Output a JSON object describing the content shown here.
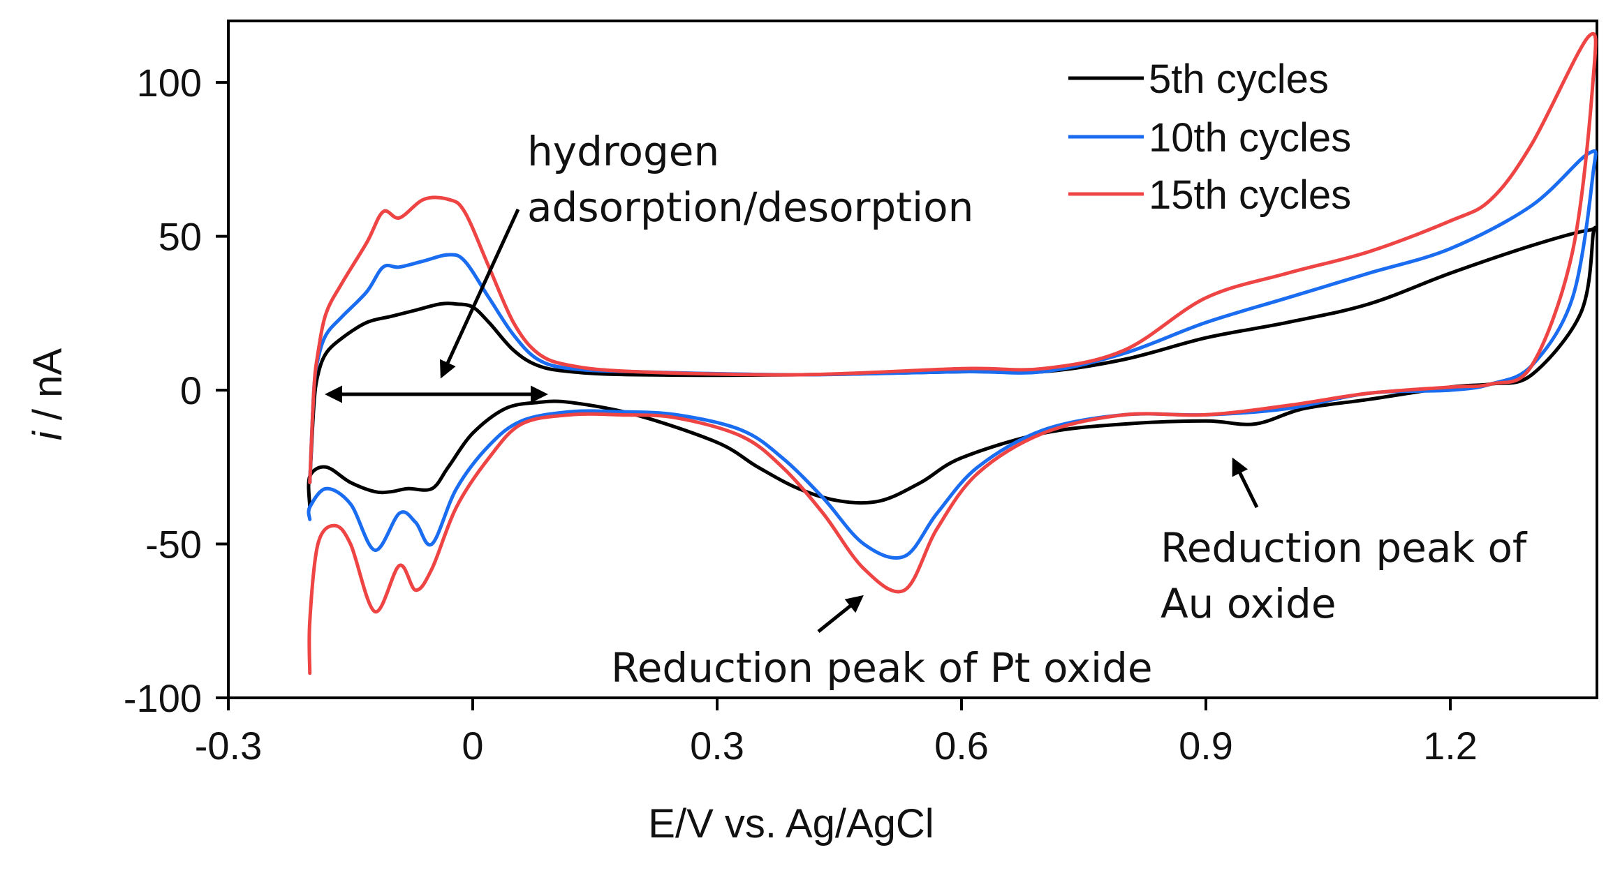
{
  "chart_data": {
    "type": "line",
    "title": "",
    "xlabel": "E/V  vs.  Ag/AgCl",
    "ylabel_italic": "i",
    "ylabel_rest": " / nA",
    "xlim": [
      -0.3,
      1.38
    ],
    "ylim": [
      -100,
      120
    ],
    "xticks": [
      -0.3,
      0,
      0.3,
      0.6,
      0.9,
      1.2
    ],
    "xtick_labels": [
      "-0.3",
      "0",
      "0.3",
      "0.6",
      "0.9",
      "1.2"
    ],
    "yticks": [
      -100,
      -50,
      0,
      50,
      100
    ],
    "ytick_labels": [
      "-100",
      "-50",
      "0",
      "50",
      "100"
    ],
    "grid": false,
    "legend_position": "top-right",
    "series": [
      {
        "name": "5th cycles",
        "color": "#000000",
        "x": [
          -0.2,
          -0.195,
          -0.19,
          -0.18,
          -0.16,
          -0.13,
          -0.1,
          -0.07,
          -0.04,
          -0.02,
          0.0,
          0.02,
          0.05,
          0.08,
          0.12,
          0.2,
          0.4,
          0.6,
          0.7,
          0.8,
          0.9,
          1.0,
          1.1,
          1.2,
          1.3,
          1.37,
          1.375,
          1.36,
          1.3,
          1.25,
          1.2,
          1.1,
          1.02,
          0.96,
          0.9,
          0.8,
          0.7,
          0.6,
          0.55,
          0.5,
          0.45,
          0.4,
          0.35,
          0.3,
          0.2,
          0.12,
          0.08,
          0.04,
          0.0,
          -0.03,
          -0.05,
          -0.08,
          -0.1,
          -0.12,
          -0.15,
          -0.18,
          -0.2,
          -0.2
        ],
        "y": [
          -30,
          -5,
          5,
          12,
          17,
          22,
          24,
          26,
          28,
          28,
          27,
          22,
          13,
          8,
          6,
          5,
          5,
          6,
          6,
          10,
          17,
          22,
          28,
          38,
          47,
          52,
          50,
          25,
          5,
          2,
          1,
          -3,
          -6,
          -11,
          -10,
          -11,
          -14,
          -22,
          -30,
          -36,
          -36,
          -32,
          -25,
          -17,
          -8,
          -4,
          -4,
          -6,
          -14,
          -25,
          -32,
          -32,
          -33,
          -33,
          -30,
          -25,
          -28,
          -38
        ]
      },
      {
        "name": "10th cycles",
        "color": "#1a6cf0",
        "x": [
          -0.2,
          -0.195,
          -0.19,
          -0.18,
          -0.16,
          -0.13,
          -0.11,
          -0.09,
          -0.06,
          -0.03,
          -0.01,
          0.02,
          0.05,
          0.08,
          0.12,
          0.2,
          0.4,
          0.6,
          0.7,
          0.8,
          0.9,
          1.0,
          1.1,
          1.2,
          1.3,
          1.37,
          1.375,
          1.35,
          1.3,
          1.25,
          1.2,
          1.1,
          1.0,
          0.9,
          0.8,
          0.7,
          0.62,
          0.57,
          0.53,
          0.48,
          0.43,
          0.38,
          0.33,
          0.25,
          0.18,
          0.12,
          0.06,
          0.02,
          -0.02,
          -0.05,
          -0.07,
          -0.09,
          -0.12,
          -0.15,
          -0.18,
          -0.2,
          -0.2
        ],
        "y": [
          -30,
          0,
          10,
          18,
          24,
          32,
          40,
          40,
          42,
          44,
          42,
          30,
          18,
          10,
          7,
          6,
          5,
          6,
          6,
          12,
          22,
          30,
          38,
          46,
          60,
          77,
          70,
          30,
          8,
          2,
          0,
          -1,
          -6,
          -8,
          -8,
          -13,
          -25,
          -40,
          -54,
          -50,
          -35,
          -22,
          -13,
          -8,
          -7,
          -7,
          -10,
          -18,
          -32,
          -50,
          -43,
          -40,
          -52,
          -37,
          -32,
          -38,
          -42
        ]
      },
      {
        "name": "15th cycles",
        "color": "#ee4444",
        "x": [
          -0.2,
          -0.195,
          -0.19,
          -0.18,
          -0.16,
          -0.13,
          -0.11,
          -0.09,
          -0.06,
          -0.03,
          -0.01,
          0.02,
          0.05,
          0.08,
          0.12,
          0.2,
          0.4,
          0.6,
          0.7,
          0.8,
          0.9,
          1.0,
          1.1,
          1.2,
          1.25,
          1.3,
          1.37,
          1.375,
          1.35,
          1.3,
          1.25,
          1.2,
          1.1,
          1.0,
          0.9,
          0.8,
          0.7,
          0.62,
          0.57,
          0.53,
          0.48,
          0.43,
          0.38,
          0.33,
          0.25,
          0.18,
          0.12,
          0.06,
          0.02,
          -0.02,
          -0.05,
          -0.07,
          -0.09,
          -0.12,
          -0.15,
          -0.17,
          -0.19,
          -0.2,
          -0.2
        ],
        "y": [
          -30,
          0,
          12,
          25,
          35,
          48,
          58,
          56,
          62,
          62,
          58,
          40,
          22,
          12,
          8,
          6,
          5,
          7,
          7,
          13,
          30,
          38,
          45,
          55,
          62,
          80,
          115,
          100,
          45,
          8,
          2,
          1,
          -1,
          -5,
          -8,
          -8,
          -14,
          -27,
          -45,
          -65,
          -58,
          -40,
          -25,
          -15,
          -9,
          -8,
          -8,
          -11,
          -22,
          -38,
          -58,
          -65,
          -57,
          -72,
          -50,
          -44,
          -50,
          -75,
          -92
        ]
      }
    ],
    "annotations": [
      {
        "name": "hydrogen",
        "lines": [
          "hydrogen",
          "adsorption/desorption"
        ]
      },
      {
        "name": "pt-oxide",
        "lines": [
          "Reduction peak of Pt oxide"
        ]
      },
      {
        "name": "au-oxide",
        "lines": [
          "Reduction peak of",
          "Au oxide"
        ]
      }
    ]
  }
}
